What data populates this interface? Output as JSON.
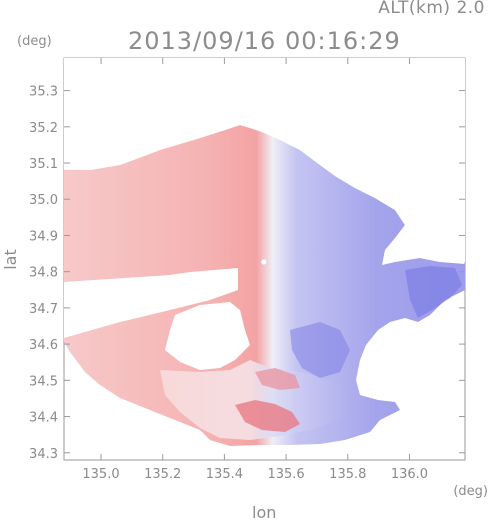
{
  "header": {
    "altitude": "ALT(km) 2.0",
    "timestamp": "2013/09/16 00:16:29"
  },
  "axes": {
    "x_unit": "(deg)",
    "y_unit": "(deg)",
    "x_label": "lon",
    "y_label": "lat",
    "x_ticks": [
      "135.0",
      "135.2",
      "135.4",
      "135.6",
      "135.8",
      "136.0"
    ],
    "y_ticks": [
      "35.3",
      "35.2",
      "35.1",
      "35.0",
      "34.9",
      "34.8",
      "34.7",
      "34.6",
      "34.5",
      "34.4",
      "34.3"
    ]
  },
  "map": {
    "type": "radar doppler velocity",
    "lon_range": [
      134.88,
      136.18
    ],
    "lat_range": [
      34.28,
      35.39
    ],
    "radar_center": {
      "lon": 135.52,
      "lat": 34.8
    },
    "colors": {
      "approaching": "#f2a6a6",
      "receding": "#a9a9ee",
      "near_zero": "#f4eef0",
      "strong_red": "#e8707a",
      "strong_blue": "#6e6fe0"
    }
  }
}
